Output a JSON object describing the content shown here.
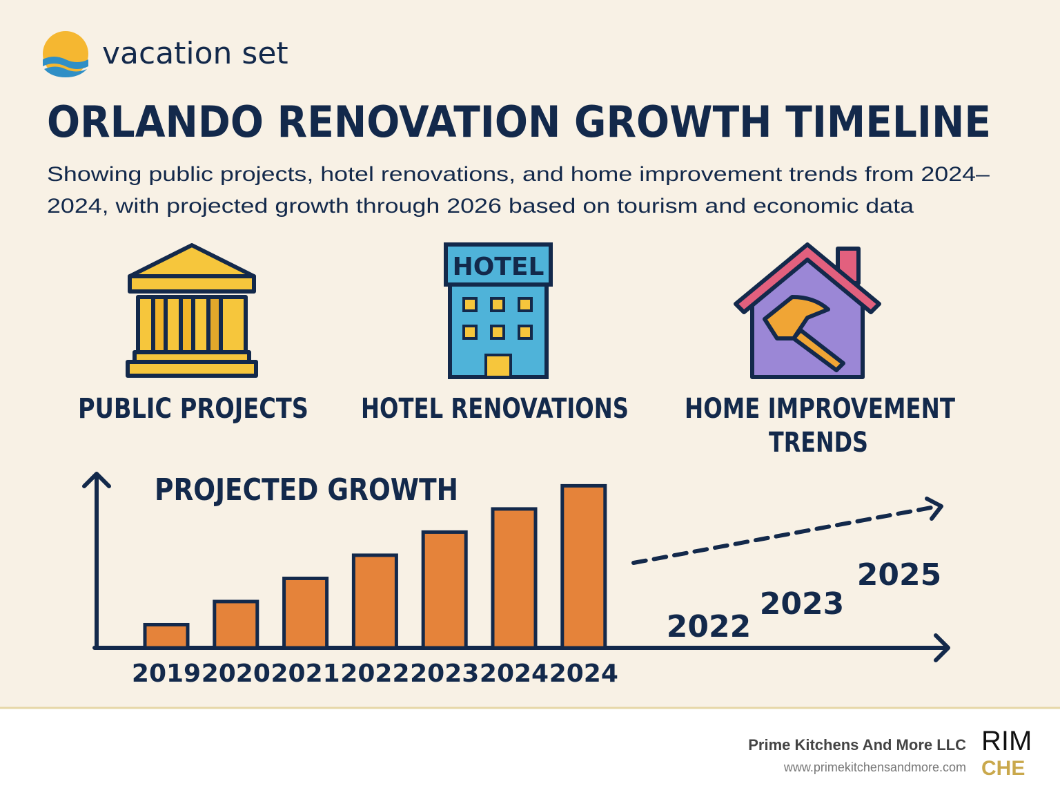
{
  "header": {
    "brand": "vacation set",
    "title": "ORLANDO RENOVATION GROWTH TIMELINE",
    "subtitle_lines": [
      "Showing public projects, hotel renovations, and home improvement trends from 2024–",
      "2024, with projected growth through 2026 based on tourism and economic data"
    ]
  },
  "icons": [
    {
      "label_lines": [
        "PUBLIC PROJECTS"
      ],
      "sign": null
    },
    {
      "label_lines": [
        "HOTEL RENOVATIONS"
      ],
      "sign": "HOTEL"
    },
    {
      "label_lines": [
        "HOME IMPROVEMENT",
        "TRENDS"
      ],
      "sign": null
    }
  ],
  "chart_data": {
    "type": "bar",
    "title": "PROJECTED GROWTH",
    "categories": [
      "2019",
      "2020",
      "2021",
      "2022",
      "2023",
      "2024",
      "2024"
    ],
    "values": [
      1,
      2,
      3,
      4,
      5,
      6,
      7
    ],
    "color": "#e5833a",
    "ylim": [
      0,
      7.4
    ],
    "projection_labels": [
      "2022",
      "2023",
      "2025"
    ]
  },
  "footer": {
    "company": "Prime Kitchens And More LLC",
    "url": "www.primekitchensandmore.com",
    "logo_text": [
      "RIM",
      "CHE"
    ]
  }
}
